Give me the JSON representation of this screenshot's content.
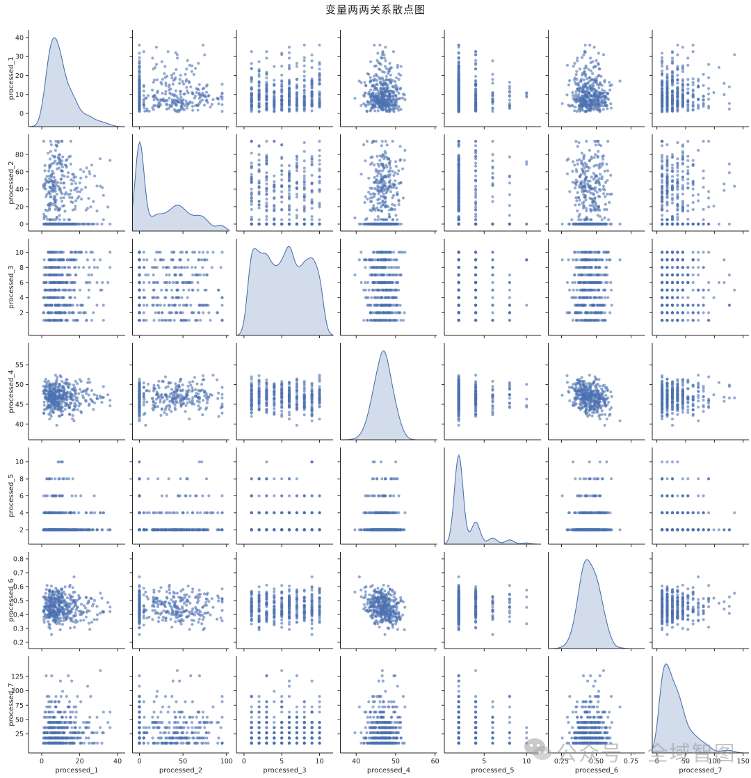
{
  "title": "变量两两关系散点图",
  "watermark": "公众号 · 全域智图",
  "colors": {
    "point": "#4c72b0",
    "kde_fill": "#4c72b0",
    "axis": "#262626"
  },
  "chart_data": {
    "type": "scatter",
    "variables": [
      "processed_1",
      "processed_2",
      "processed_3",
      "processed_4",
      "processed_5",
      "processed_6",
      "processed_7"
    ],
    "diagonal": "kde",
    "ranges": {
      "processed_1": [
        -7,
        44
      ],
      "processed_2": [
        -8,
        103
      ],
      "processed_3": [
        -1,
        11.8
      ],
      "processed_4": [
        36,
        60.5
      ],
      "processed_5": [
        0.3,
        11.7
      ],
      "processed_6": [
        0.155,
        0.85
      ],
      "processed_7": [
        -8,
        160
      ]
    },
    "ticks": {
      "processed_1": [
        0,
        10,
        20,
        30,
        40
      ],
      "processed_2": [
        0,
        20,
        40,
        60,
        80
      ],
      "processed_3": [
        2,
        4,
        6,
        8,
        10
      ],
      "processed_4": [
        40,
        45,
        50,
        55
      ],
      "processed_5": [
        2,
        4,
        6,
        8,
        10
      ],
      "processed_6": [
        0.2,
        0.3,
        0.4,
        0.5,
        0.6,
        0.7,
        0.8
      ],
      "processed_7": [
        25,
        50,
        75,
        100,
        125
      ]
    },
    "xticks": {
      "processed_1": [
        0,
        20,
        40
      ],
      "processed_2": [
        0,
        50,
        100
      ],
      "processed_3": [
        0,
        5,
        10
      ],
      "processed_4": [
        40,
        50,
        60
      ],
      "processed_5": [
        5,
        10
      ],
      "processed_6": [
        0.25,
        0.5,
        0.75
      ],
      "processed_7": [
        0,
        50,
        100,
        150
      ]
    },
    "xtick_labels": {
      "processed_6": [
        "0.25",
        "0.50",
        "0.75"
      ]
    },
    "distributions": {
      "processed_1": {
        "kind": "gamma",
        "shape": 2.5,
        "scale": 4.0,
        "min": 0.5,
        "max": 36
      },
      "processed_2": {
        "kind": "zero_mix",
        "zero_fraction": 0.45,
        "mean": 45,
        "sd": 22,
        "min": 5,
        "max": 95
      },
      "processed_3": {
        "kind": "int_uniform",
        "min": 1,
        "max": 10
      },
      "processed_4": {
        "kind": "normal",
        "mean": 47,
        "sd": 3.3,
        "min": 38.5,
        "max": 58
      },
      "processed_5": {
        "kind": "even_skew",
        "values": [
          2,
          4,
          6,
          8,
          10
        ],
        "weights": [
          0.72,
          0.17,
          0.07,
          0.03,
          0.01
        ]
      },
      "processed_6": {
        "kind": "normal",
        "mean": 0.45,
        "sd": 0.1,
        "min": 0.21,
        "max": 0.83
      },
      "processed_7": {
        "kind": "int_gamma",
        "shape": 1.6,
        "scale": 20,
        "min": 9,
        "max": 137,
        "step": 9
      }
    },
    "n_points": 400,
    "xlabel_position": "bottom",
    "ylabel_position": "left",
    "grid": false,
    "legend": "none"
  }
}
